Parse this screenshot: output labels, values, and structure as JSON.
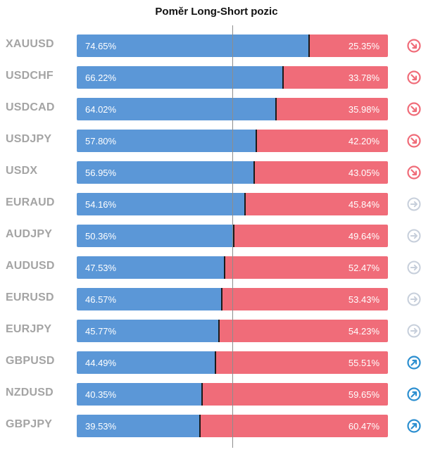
{
  "title": "Poměr Long-Short pozic",
  "colors": {
    "long": "#5b97d7",
    "short": "#f06c79",
    "down": "#f06c79",
    "neutral": "#c7cfdb",
    "up": "#2c8fd0"
  },
  "rows": [
    {
      "symbol": "XAUUSD",
      "long": 74.65,
      "short": 25.35,
      "long_label": "74.65%",
      "short_label": "25.35%",
      "icon": "arrow-down-right-icon",
      "trend": "down"
    },
    {
      "symbol": "USDCHF",
      "long": 66.22,
      "short": 33.78,
      "long_label": "66.22%",
      "short_label": "33.78%",
      "icon": "arrow-down-right-icon",
      "trend": "down"
    },
    {
      "symbol": "USDCAD",
      "long": 64.02,
      "short": 35.98,
      "long_label": "64.02%",
      "short_label": "35.98%",
      "icon": "arrow-down-right-icon",
      "trend": "down"
    },
    {
      "symbol": "USDJPY",
      "long": 57.8,
      "short": 42.2,
      "long_label": "57.80%",
      "short_label": "42.20%",
      "icon": "arrow-down-right-icon",
      "trend": "down"
    },
    {
      "symbol": "USDX",
      "long": 56.95,
      "short": 43.05,
      "long_label": "56.95%",
      "short_label": "43.05%",
      "icon": "arrow-down-right-icon",
      "trend": "down"
    },
    {
      "symbol": "EURAUD",
      "long": 54.16,
      "short": 45.84,
      "long_label": "54.16%",
      "short_label": "45.84%",
      "icon": "arrow-right-icon",
      "trend": "neutral"
    },
    {
      "symbol": "AUDJPY",
      "long": 50.36,
      "short": 49.64,
      "long_label": "50.36%",
      "short_label": "49.64%",
      "icon": "arrow-right-icon",
      "trend": "neutral"
    },
    {
      "symbol": "AUDUSD",
      "long": 47.53,
      "short": 52.47,
      "long_label": "47.53%",
      "short_label": "52.47%",
      "icon": "arrow-right-icon",
      "trend": "neutral"
    },
    {
      "symbol": "EURUSD",
      "long": 46.57,
      "short": 53.43,
      "long_label": "46.57%",
      "short_label": "53.43%",
      "icon": "arrow-right-icon",
      "trend": "neutral"
    },
    {
      "symbol": "EURJPY",
      "long": 45.77,
      "short": 54.23,
      "long_label": "45.77%",
      "short_label": "54.23%",
      "icon": "arrow-right-icon",
      "trend": "neutral"
    },
    {
      "symbol": "GBPUSD",
      "long": 44.49,
      "short": 55.51,
      "long_label": "44.49%",
      "short_label": "55.51%",
      "icon": "arrow-up-right-icon",
      "trend": "up"
    },
    {
      "symbol": "NZDUSD",
      "long": 40.35,
      "short": 59.65,
      "long_label": "40.35%",
      "short_label": "59.65%",
      "icon": "arrow-up-right-icon",
      "trend": "up"
    },
    {
      "symbol": "GBPJPY",
      "long": 39.53,
      "short": 60.47,
      "long_label": "39.53%",
      "short_label": "60.47%",
      "icon": "arrow-up-right-icon",
      "trend": "up"
    }
  ]
}
